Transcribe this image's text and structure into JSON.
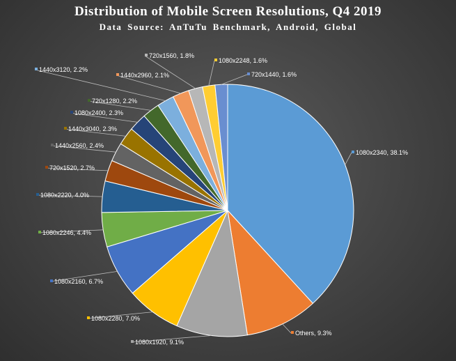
{
  "chart_data": {
    "type": "pie",
    "title": "Distribution of Mobile Screen Resolutions, Q4 2019",
    "subtitle": "Data Source: AnTuTu Benchmark, Android, Global",
    "slices": [
      {
        "label": "1080x2340",
        "value": 38.1,
        "display": "1080x2340, 38.1%",
        "color": "#5b9bd5"
      },
      {
        "label": "Others",
        "value": 9.3,
        "display": "Others, 9.3%",
        "color": "#ed7d31"
      },
      {
        "label": "1080x1920",
        "value": 9.1,
        "display": "1080x1920, 9.1%",
        "color": "#a5a5a5"
      },
      {
        "label": "1080x2280",
        "value": 7.0,
        "display": "1080x2280, 7.0%",
        "color": "#ffc000"
      },
      {
        "label": "1080x2160",
        "value": 6.7,
        "display": "1080x2160, 6.7%",
        "color": "#4472c4"
      },
      {
        "label": "1080x2246",
        "value": 4.4,
        "display": "1080x2246, 4.4%",
        "color": "#70ad47"
      },
      {
        "label": "1080x2220",
        "value": 4.0,
        "display": "1080x2220, 4.0%",
        "color": "#255e91"
      },
      {
        "label": "720x1520",
        "value": 2.7,
        "display": "720x1520, 2.7%",
        "color": "#9e480e"
      },
      {
        "label": "1440x2560",
        "value": 2.4,
        "display": "1440x2560, 2.4%",
        "color": "#636363"
      },
      {
        "label": "1440x3040",
        "value": 2.3,
        "display": "1440x3040, 2.3%",
        "color": "#997300"
      },
      {
        "label": "1080x2400",
        "value": 2.3,
        "display": "1080x2400, 2.3%",
        "color": "#264478"
      },
      {
        "label": "720x1280",
        "value": 2.2,
        "display": "720x1280, 2.2%",
        "color": "#43682b"
      },
      {
        "label": "1440x3120",
        "value": 2.2,
        "display": "1440x3120, 2.2%",
        "color": "#7cafdd"
      },
      {
        "label": "1440x2960",
        "value": 2.1,
        "display": "1440x2960, 2.1%",
        "color": "#f1975a"
      },
      {
        "label": "720x1560",
        "value": 1.8,
        "display": "720x1560, 1.8%",
        "color": "#b7b7b7"
      },
      {
        "label": "1080x2248",
        "value": 1.6,
        "display": "1080x2248, 1.6%",
        "color": "#ffcd33"
      },
      {
        "label": "720x1440",
        "value": 1.6,
        "display": "720x1440, 1.6%",
        "color": "#698ed0"
      }
    ]
  }
}
